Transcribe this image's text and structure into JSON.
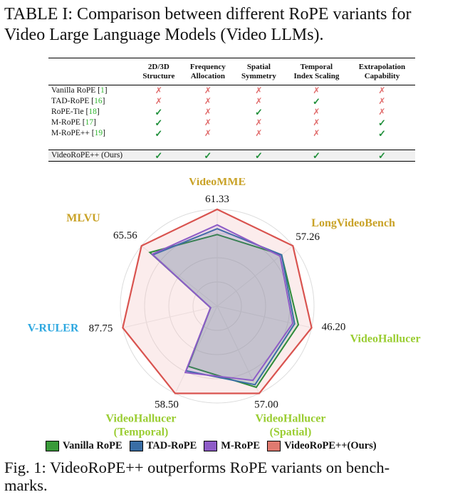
{
  "table_caption": {
    "line1": "TABLE I: Comparison between different RoPE variants for",
    "line2": "Video Large Language Models (Video LLMs)."
  },
  "table": {
    "headers": [
      [
        "2D/3D",
        "Structure"
      ],
      [
        "Frequency",
        "Allocation"
      ],
      [
        "Spatial",
        "Symmetry"
      ],
      [
        "Temporal",
        "Index Scaling"
      ],
      [
        "Extrapolation",
        "Capability"
      ]
    ],
    "rows": [
      {
        "name": "Vanilla RoPE",
        "ref": "1",
        "cells": [
          "✗",
          "✗",
          "✗",
          "✗",
          "✗"
        ]
      },
      {
        "name": "TAD-RoPE",
        "ref": "16",
        "cells": [
          "✗",
          "✗",
          "✗",
          "✓",
          "✗"
        ]
      },
      {
        "name": "RoPE-Tie",
        "ref": "18",
        "cells": [
          "✓",
          "✗",
          "✓",
          "✗",
          "✗"
        ]
      },
      {
        "name": "M-RoPE",
        "ref": "17",
        "cells": [
          "✓",
          "✗",
          "✗",
          "✗",
          "✓"
        ]
      },
      {
        "name": "M-RoPE++",
        "ref": "19",
        "cells": [
          "✓",
          "✗",
          "✗",
          "✗",
          "✓"
        ]
      }
    ],
    "ours": {
      "name": "VideoRoPE++ (Ours)",
      "cells": [
        "✓",
        "✓",
        "✓",
        "✓",
        "✓"
      ]
    }
  },
  "chart_data": {
    "type": "radar",
    "axes": [
      {
        "label": [
          "VideoMME"
        ],
        "max_label": "61.33",
        "color": "#c9a227"
      },
      {
        "label": [
          "LongVideoBench"
        ],
        "max_label": "57.26",
        "color": "#c9a227"
      },
      {
        "label": [
          "VideoHallucer"
        ],
        "max_label": "46.20",
        "color": "#9acd32"
      },
      {
        "label": [
          "VideoHallucer",
          "(Spatial)"
        ],
        "max_label": "57.00",
        "color": "#9acd32"
      },
      {
        "label": [
          "VideoHallucer",
          "(Temporal)"
        ],
        "max_label": "58.50",
        "color": "#9acd32"
      },
      {
        "label": [
          "V-RULER"
        ],
        "max_label": "87.75",
        "color": "#2ea8e0"
      },
      {
        "label": [
          "MLVU"
        ],
        "max_label": "65.56",
        "color": "#c9a227"
      }
    ],
    "grid_levels": [
      0.25,
      0.5,
      0.75,
      1.0
    ],
    "series": [
      {
        "name": "Vanilla RoPE",
        "color": "#2e8b3a",
        "fill": "#2e8b3a",
        "values": [
          0.74,
          0.85,
          0.86,
          0.93,
          0.69,
          0.07,
          0.89
        ]
      },
      {
        "name": "TAD-RoPE",
        "color": "#3a6ea5",
        "fill": "#3a6ea5",
        "values": [
          0.8,
          0.85,
          0.82,
          0.9,
          0.74,
          0.07,
          0.85
        ]
      },
      {
        "name": "M-RoPE",
        "color": "#8e5cc7",
        "fill": "#8e5cc7",
        "values": [
          0.84,
          0.83,
          0.8,
          0.85,
          0.76,
          0.07,
          0.86
        ]
      },
      {
        "name": "VideoRoPE++(Ours)",
        "color": "#d9534f",
        "fill": "#f4c8c8",
        "values": [
          1,
          1,
          1,
          1,
          1,
          1,
          1
        ]
      }
    ]
  },
  "legend": [
    {
      "name": "Vanilla RoPE",
      "color": "#3a9a3a"
    },
    {
      "name": "TAD-RoPE",
      "color": "#3a6ea5"
    },
    {
      "name": "M-RoPE",
      "color": "#8e5cc7"
    },
    {
      "name": "VideoRoPE++(Ours)",
      "color": "#e07a70"
    }
  ],
  "figure_caption": {
    "line1": "Fig. 1: VideoRoPE++ outperforms RoPE variants on bench-",
    "line2": "marks."
  }
}
